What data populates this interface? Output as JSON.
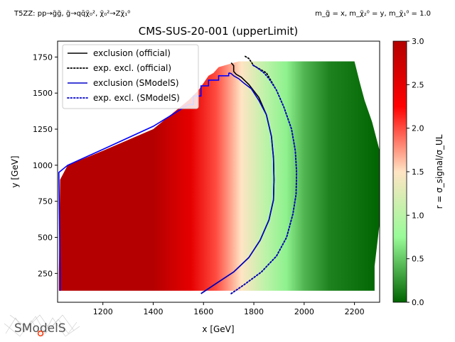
{
  "header": {
    "process_text": "T5ZZ: pp→g̃g̃, g̃→qq̄χ̃₀², χ̃₀²→Zχ̃₁⁰",
    "mass_text": "m_g̃ = x, m_χ̃₂⁰ = y, m_χ̃₁⁰ = 1.0"
  },
  "logo_text": "SModelS",
  "chart_data": {
    "type": "heatmap",
    "title": "CMS-SUS-20-001 (upperLimit)",
    "xlabel": "x [GeV]",
    "ylabel": "y [GeV]",
    "xlim": [
      1020,
      2300
    ],
    "ylim": [
      50,
      1860
    ],
    "xticks": [
      1200,
      1400,
      1600,
      1800,
      2000,
      2200
    ],
    "yticks": [
      250,
      500,
      750,
      1000,
      1250,
      1500,
      1750
    ],
    "colorbar": {
      "label": "r = σ_signal/σ_UL",
      "ticks": [
        0.0,
        0.5,
        1.0,
        1.5,
        2.0,
        2.5,
        3.0
      ],
      "range": [
        0.0,
        3.0
      ],
      "colors": [
        "#006400",
        "#98fb98",
        "#ffe4c4",
        "#ff0000",
        "#b40000"
      ]
    },
    "legend": {
      "placement": "top-left",
      "entries": [
        {
          "label": "exclusion (official)",
          "color": "#000000",
          "style": "solid"
        },
        {
          "label": "exp. excl. (official)",
          "color": "#000000",
          "style": "dotted"
        },
        {
          "label": "exclusion (SModelS)",
          "color": "#0000cc",
          "style": "solid"
        },
        {
          "label": "exp. excl. (SModelS)",
          "color": "#0000cc",
          "style": "dotted"
        }
      ]
    },
    "grid_region": {
      "x_range": [
        1025,
        2280
      ],
      "y_range": [
        130,
        1720
      ],
      "left_edge": [
        [
          1025,
          250
        ],
        [
          1030,
          900
        ],
        [
          1060,
          1000
        ],
        [
          1200,
          1100
        ],
        [
          1400,
          1250
        ],
        [
          1540,
          1450
        ],
        [
          1580,
          1520
        ],
        [
          1600,
          1570
        ],
        [
          1620,
          1620
        ],
        [
          1640,
          1640
        ],
        [
          1660,
          1680
        ],
        [
          1700,
          1700
        ],
        [
          1740,
          1720
        ]
      ],
      "right_edge": [
        [
          2280,
          130
        ],
        [
          2280,
          300
        ],
        [
          2300,
          600
        ],
        [
          2310,
          880
        ],
        [
          2300,
          1100
        ],
        [
          2270,
          1300
        ],
        [
          2240,
          1450
        ],
        [
          2220,
          1580
        ],
        [
          2200,
          1720
        ]
      ]
    },
    "r_profile": [
      [
        1025,
        3.0
      ],
      [
        1400,
        3.0
      ],
      [
        1550,
        2.5
      ],
      [
        1650,
        2.0
      ],
      [
        1750,
        1.5
      ],
      [
        1850,
        1.0
      ],
      [
        1930,
        0.7
      ],
      [
        2000,
        0.4
      ],
      [
        2100,
        0.15
      ],
      [
        2300,
        0.0
      ]
    ],
    "series": [
      {
        "name": "exclusion (official)",
        "color": "#000000",
        "style": "solid",
        "x": [
          1590,
          1650,
          1720,
          1780,
          1825,
          1860,
          1878,
          1880,
          1878,
          1870,
          1850,
          1820,
          1780,
          1750,
          1730,
          1720,
          1720,
          1710
        ],
        "y": [
          110,
          180,
          260,
          360,
          480,
          620,
          760,
          900,
          1050,
          1200,
          1350,
          1470,
          1560,
          1610,
          1630,
          1650,
          1690,
          1710
        ]
      },
      {
        "name": "exp. excl. (official)",
        "color": "#000000",
        "style": "dotted",
        "x": [
          1710,
          1760,
          1830,
          1890,
          1930,
          1955,
          1968,
          1970,
          1965,
          1950,
          1920,
          1890,
          1850,
          1800,
          1780,
          1760
        ],
        "y": [
          110,
          170,
          260,
          370,
          500,
          660,
          800,
          950,
          1100,
          1250,
          1400,
          1520,
          1640,
          1690,
          1740,
          1760
        ]
      },
      {
        "name": "exclusion (SModelS)",
        "color": "#0000cc",
        "style": "solid",
        "x": [
          1590,
          1650,
          1720,
          1780,
          1825,
          1860,
          1878,
          1880,
          1878,
          1870,
          1850,
          1820,
          1790,
          1760,
          1740,
          1720,
          1710,
          1700
        ],
        "y": [
          110,
          180,
          260,
          360,
          480,
          620,
          760,
          900,
          1050,
          1200,
          1350,
          1450,
          1530,
          1570,
          1600,
          1620,
          1635,
          1640
        ]
      },
      {
        "name": "exp. excl. (SModelS)",
        "color": "#0000cc",
        "style": "dotted",
        "x": [
          1710,
          1760,
          1830,
          1890,
          1930,
          1955,
          1968,
          1970,
          1965,
          1950,
          1920,
          1890,
          1860,
          1840,
          1810,
          1790
        ],
        "y": [
          110,
          170,
          260,
          370,
          500,
          660,
          800,
          950,
          1100,
          1250,
          1400,
          1520,
          1600,
          1640,
          1680,
          1700
        ]
      },
      {
        "name": "SModelS boundary",
        "color": "#0000ff",
        "style": "solid",
        "x": [
          1030,
          1030,
          1025,
          1060,
          1200,
          1400,
          1540,
          1560,
          1560,
          1590,
          1590,
          1620,
          1620,
          1660,
          1660,
          1700,
          1700
        ],
        "y": [
          130,
          250,
          950,
          1000,
          1110,
          1270,
          1420,
          1420,
          1480,
          1480,
          1550,
          1550,
          1590,
          1590,
          1620,
          1620,
          1640
        ]
      }
    ]
  }
}
